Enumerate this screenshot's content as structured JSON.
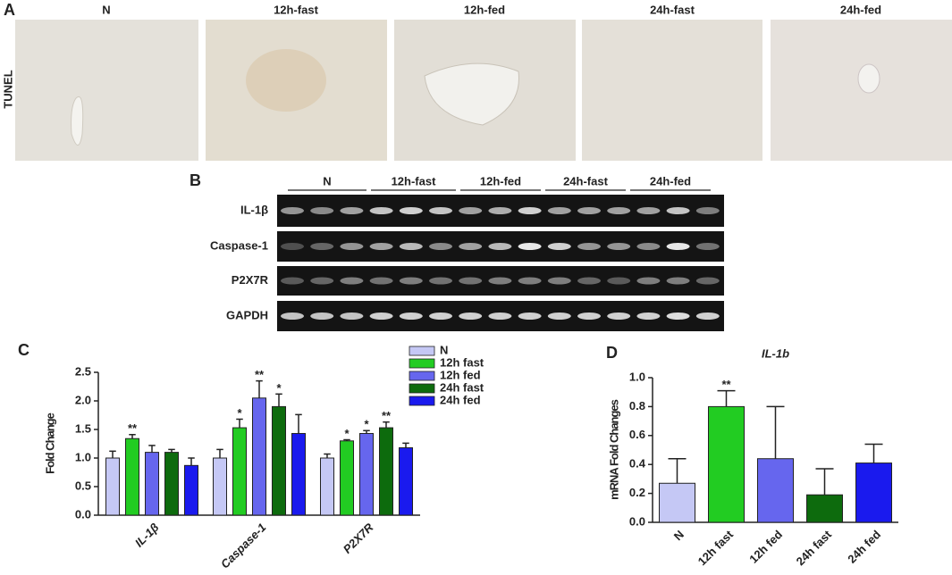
{
  "panels": {
    "a": "A",
    "b": "B",
    "c": "C",
    "d": "D"
  },
  "tunel": {
    "row_label": "TUNEL",
    "columns": [
      "N",
      "12h-fast",
      "12h-fed",
      "24h-fast",
      "24h-fed"
    ]
  },
  "gel": {
    "groups": [
      "N",
      "12h-fast",
      "12h-fed",
      "24h-fast",
      "24h-fed"
    ],
    "rows": [
      "IL-1β",
      "Caspase-1",
      "P2X7R",
      "GAPDH"
    ]
  },
  "chart_data": [
    {
      "type": "bar",
      "y_label": "Fold Change",
      "categories": [
        "IL-1β",
        "Caspase-1",
        "P2X7R"
      ],
      "series": [
        {
          "name": "N",
          "color": "#c5c8f5",
          "values": [
            1.0,
            1.0,
            1.0
          ],
          "errors": [
            0.12,
            0.15,
            0.07
          ],
          "annotations": [
            null,
            null,
            null
          ]
        },
        {
          "name": "12h fast",
          "color": "#22cc22",
          "values": [
            1.34,
            1.53,
            1.3
          ],
          "errors": [
            0.07,
            0.15,
            0.02
          ],
          "annotations": [
            "**",
            "*",
            "*"
          ]
        },
        {
          "name": "12h fed",
          "color": "#6666ee",
          "values": [
            1.1,
            2.05,
            1.43
          ],
          "errors": [
            0.12,
            0.3,
            0.05
          ],
          "annotations": [
            null,
            "**",
            "*"
          ]
        },
        {
          "name": "24h fast",
          "color": "#0d6b0d",
          "values": [
            1.1,
            1.9,
            1.53
          ],
          "errors": [
            0.05,
            0.22,
            0.1
          ],
          "annotations": [
            null,
            "*",
            "**"
          ]
        },
        {
          "name": "24h fed",
          "color": "#1a1aee",
          "values": [
            0.87,
            1.43,
            1.18
          ],
          "errors": [
            0.13,
            0.33,
            0.08
          ],
          "annotations": [
            null,
            null,
            null
          ]
        }
      ],
      "ylim": [
        0,
        2.5
      ],
      "yticks": [
        {
          "value": 0,
          "label": "0.0"
        },
        0.5,
        {
          "value": 1,
          "label": "1.0"
        },
        1.5,
        {
          "value": 2,
          "label": "2.0"
        },
        2.5
      ],
      "legend": "upper right"
    },
    {
      "type": "bar",
      "title": "IL-1b",
      "y_label": "mRNA Fold Changes",
      "categories": [
        "N",
        "12h fast",
        "12h fed",
        "24h fast",
        "24h fed"
      ],
      "values": [
        0.27,
        0.8,
        0.44,
        0.19,
        0.41
      ],
      "errors": [
        0.17,
        0.11,
        0.36,
        0.18,
        0.13
      ],
      "annotations": [
        null,
        "**",
        null,
        null,
        null
      ],
      "colors": [
        "#c5c8f5",
        "#22cc22",
        "#6666ee",
        "#0d6b0d",
        "#1a1aee"
      ],
      "ylim": [
        0,
        1
      ],
      "yticks": [
        {
          "value": 0,
          "label": "0.0"
        },
        0.2,
        0.4,
        0.6,
        0.8,
        {
          "value": 1,
          "label": "1.0"
        }
      ]
    }
  ]
}
